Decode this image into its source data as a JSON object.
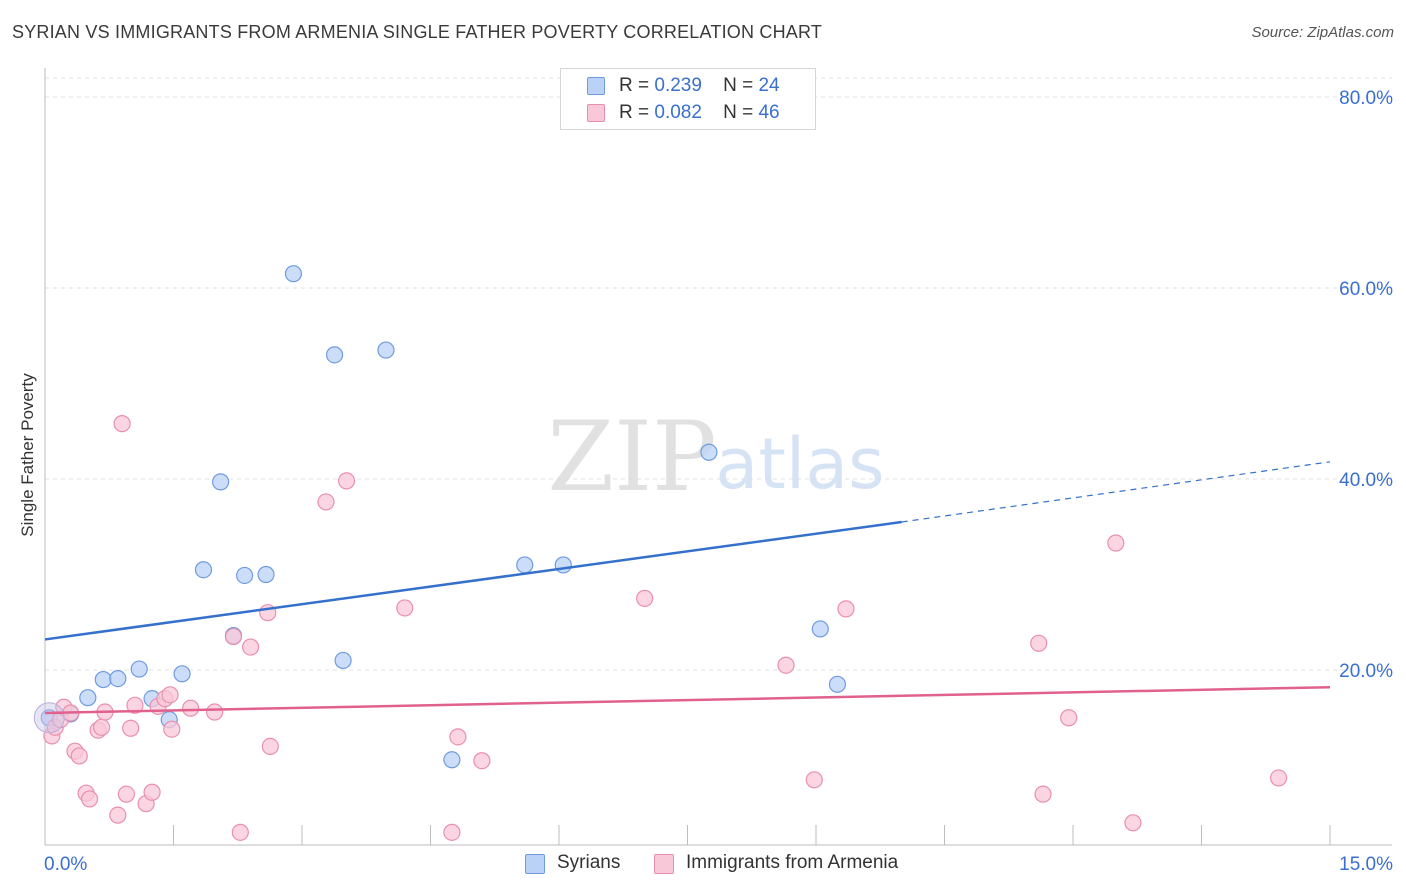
{
  "header": {
    "title": "SYRIAN VS IMMIGRANTS FROM ARMENIA SINGLE FATHER POVERTY CORRELATION CHART",
    "source": "Source: ZipAtlas.com"
  },
  "watermark": {
    "zip": "ZIP",
    "atlas": "atlas"
  },
  "legend": {
    "r_label": "R =",
    "n_label": "N =",
    "items": [
      {
        "name": "Syrians",
        "r": "0.239",
        "n": "24",
        "fill": "#b9d2f5",
        "stroke": "#6f9be0"
      },
      {
        "name": "Immigrants from Armenia",
        "r": "0.082",
        "n": "46",
        "fill": "#f9c8d8",
        "stroke": "#e98fae"
      }
    ]
  },
  "chart_data": {
    "type": "scatter",
    "xlabel": "",
    "ylabel": "Single Father Poverty",
    "xlim": [
      0,
      15
    ],
    "ylim": [
      0,
      80
    ],
    "x_tick_labels": [
      {
        "value": 0,
        "label": "0.0%"
      },
      {
        "value": 15,
        "label": "15.0%"
      }
    ],
    "y_tick_labels": [
      {
        "value": 20,
        "label": "20.0%"
      },
      {
        "value": 40,
        "label": "40.0%"
      },
      {
        "value": 60,
        "label": "60.0%"
      },
      {
        "value": 80,
        "label": "80.0%"
      }
    ],
    "grid": true,
    "series": [
      {
        "name": "Syrians",
        "color": "#6f9be0",
        "fill": "#b9d2f5",
        "trend_color": "#3470cc",
        "trend": {
          "x0": 0,
          "y0": 23.2,
          "x1": 10.0,
          "y1": 35.5,
          "x_dashed_end": 15.0,
          "y_dashed_end": 41.8
        },
        "points": [
          [
            0.05,
            15.0
          ],
          [
            0.3,
            15.4
          ],
          [
            0.5,
            17.1
          ],
          [
            0.68,
            19.0
          ],
          [
            0.85,
            19.1
          ],
          [
            1.1,
            20.1
          ],
          [
            1.25,
            17.0
          ],
          [
            1.45,
            14.8
          ],
          [
            1.6,
            19.6
          ],
          [
            1.85,
            30.5
          ],
          [
            2.05,
            39.7
          ],
          [
            2.2,
            23.6
          ],
          [
            2.33,
            29.9
          ],
          [
            2.58,
            30.0
          ],
          [
            2.9,
            61.5
          ],
          [
            3.38,
            53.0
          ],
          [
            3.48,
            21.0
          ],
          [
            3.98,
            53.5
          ],
          [
            4.75,
            10.6
          ],
          [
            5.6,
            31.0
          ],
          [
            6.05,
            31.0
          ],
          [
            7.75,
            42.8
          ],
          [
            9.05,
            24.3
          ],
          [
            9.25,
            18.5
          ]
        ]
      },
      {
        "name": "Immigrants from Armenia",
        "color": "#e98fae",
        "fill": "#f9c8d8",
        "trend_color": "#e0608e",
        "trend": {
          "x0": 0,
          "y0": 15.5,
          "x1": 15.0,
          "y1": 18.2
        },
        "points": [
          [
            0.08,
            13.1
          ],
          [
            0.12,
            14.0
          ],
          [
            0.18,
            14.8
          ],
          [
            0.22,
            16.1
          ],
          [
            0.3,
            15.5
          ],
          [
            0.35,
            11.5
          ],
          [
            0.4,
            11.0
          ],
          [
            0.48,
            7.1
          ],
          [
            0.52,
            6.5
          ],
          [
            0.62,
            13.7
          ],
          [
            0.66,
            14.0
          ],
          [
            0.7,
            15.6
          ],
          [
            0.85,
            4.8
          ],
          [
            0.95,
            7.0
          ],
          [
            1.0,
            13.9
          ],
          [
            1.05,
            16.3
          ],
          [
            1.18,
            6.0
          ],
          [
            1.25,
            7.2
          ],
          [
            1.32,
            16.2
          ],
          [
            1.4,
            17.0
          ],
          [
            1.46,
            17.4
          ],
          [
            1.48,
            13.8
          ],
          [
            1.7,
            16.0
          ],
          [
            1.98,
            15.6
          ],
          [
            0.9,
            45.8
          ],
          [
            2.2,
            23.5
          ],
          [
            2.28,
            3.0
          ],
          [
            2.4,
            22.4
          ],
          [
            2.6,
            26.0
          ],
          [
            2.63,
            12.0
          ],
          [
            3.28,
            37.6
          ],
          [
            3.52,
            39.8
          ],
          [
            4.2,
            26.5
          ],
          [
            4.75,
            3.0
          ],
          [
            4.82,
            13.0
          ],
          [
            5.1,
            10.5
          ],
          [
            7.0,
            27.5
          ],
          [
            8.65,
            20.5
          ],
          [
            8.98,
            8.5
          ],
          [
            9.35,
            26.4
          ],
          [
            11.6,
            22.8
          ],
          [
            11.65,
            7.0
          ],
          [
            11.95,
            15.0
          ],
          [
            12.5,
            33.3
          ],
          [
            12.7,
            4.0
          ],
          [
            14.4,
            8.7
          ]
        ]
      }
    ]
  }
}
